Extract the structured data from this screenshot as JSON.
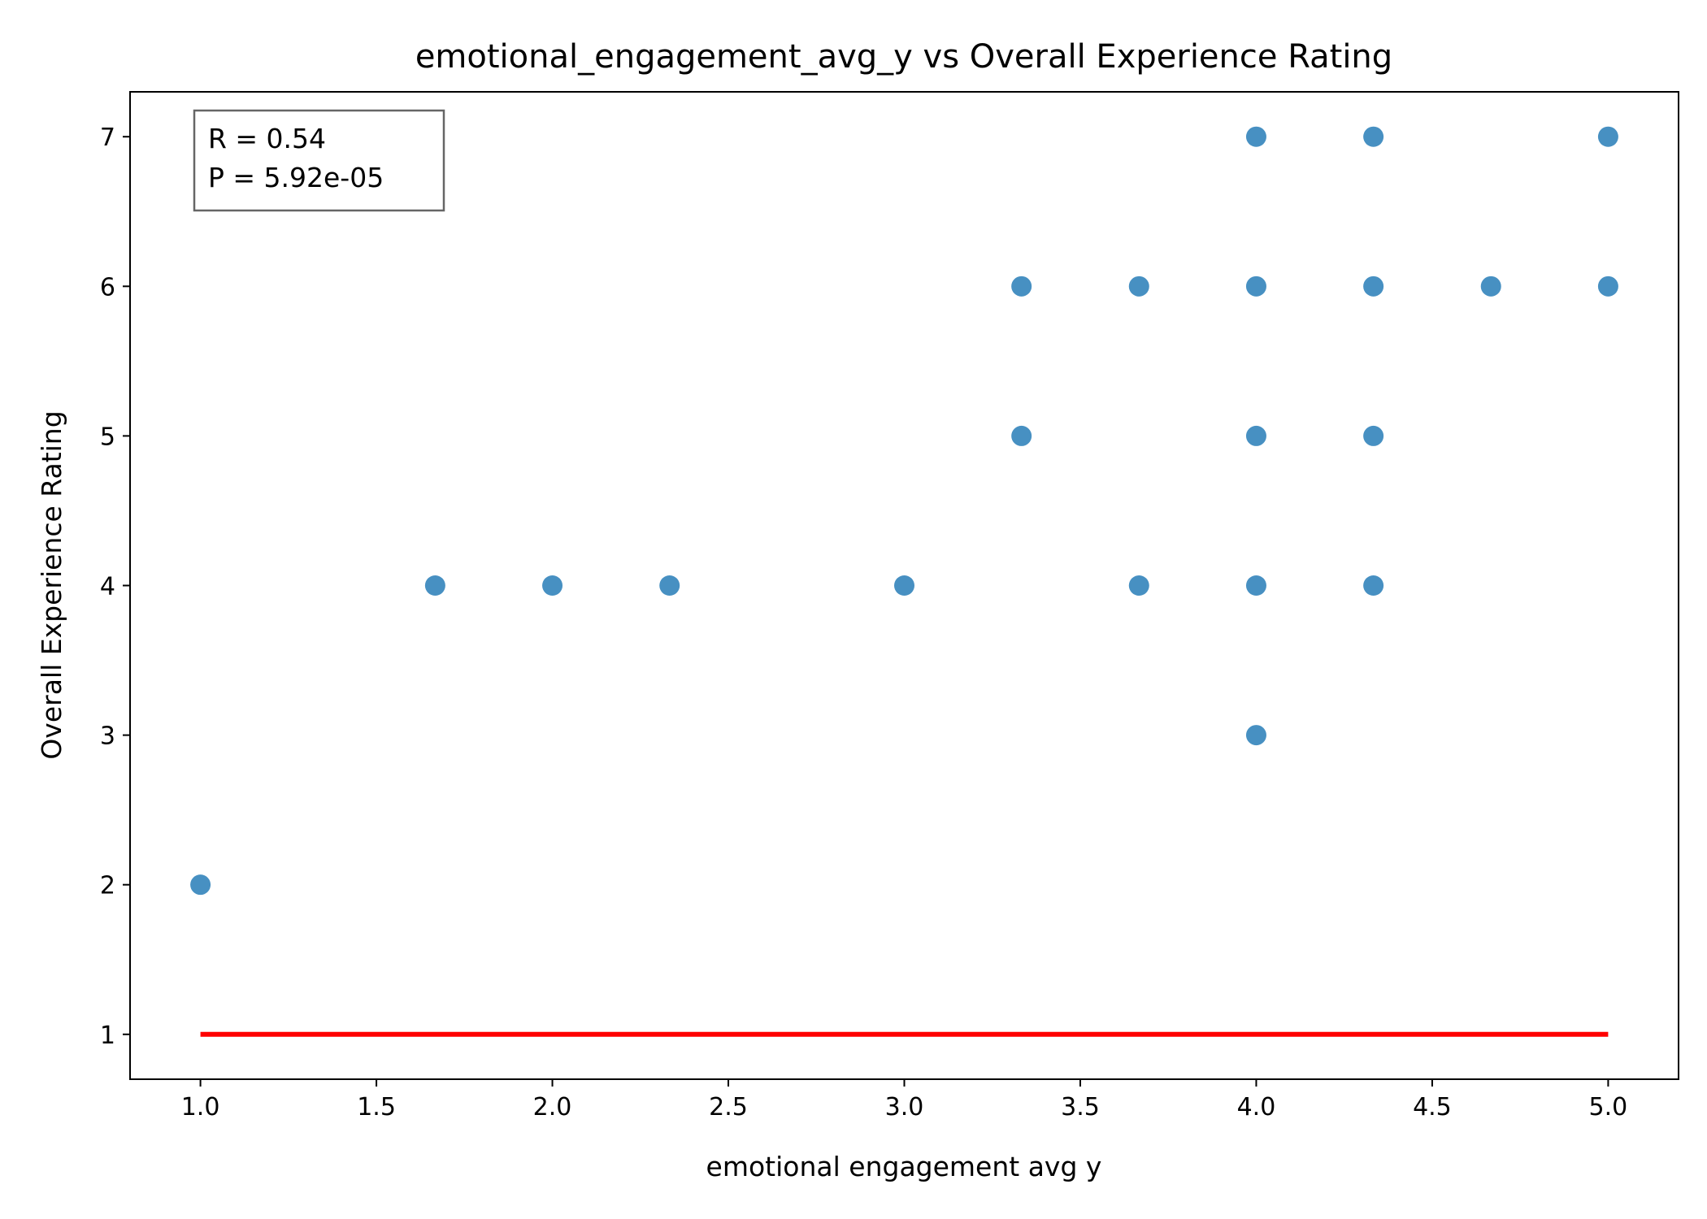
{
  "chart_data": {
    "type": "scatter",
    "title": "emotional_engagement_avg_y vs Overall Experience Rating",
    "xlabel": "emotional engagement avg y",
    "ylabel": "Overall Experience Rating",
    "xlim": [
      0.8,
      5.2
    ],
    "ylim": [
      0.7,
      7.3
    ],
    "xticks": [
      "1.0",
      "1.5",
      "2.0",
      "2.5",
      "3.0",
      "3.5",
      "4.0",
      "4.5",
      "5.0"
    ],
    "yticks": [
      "1",
      "2",
      "3",
      "4",
      "5",
      "6",
      "7"
    ],
    "grid": false,
    "point_color": "#1f77b4",
    "line_color": "#ff0000",
    "points": [
      {
        "x": 1.0,
        "y": 2
      },
      {
        "x": 1.667,
        "y": 4
      },
      {
        "x": 2.0,
        "y": 4
      },
      {
        "x": 2.333,
        "y": 4
      },
      {
        "x": 3.0,
        "y": 4
      },
      {
        "x": 3.333,
        "y": 6
      },
      {
        "x": 3.333,
        "y": 5
      },
      {
        "x": 3.667,
        "y": 6
      },
      {
        "x": 3.667,
        "y": 4
      },
      {
        "x": 4.0,
        "y": 7
      },
      {
        "x": 4.0,
        "y": 6
      },
      {
        "x": 4.0,
        "y": 5
      },
      {
        "x": 4.0,
        "y": 4
      },
      {
        "x": 4.0,
        "y": 3
      },
      {
        "x": 4.333,
        "y": 7
      },
      {
        "x": 4.333,
        "y": 6
      },
      {
        "x": 4.333,
        "y": 5
      },
      {
        "x": 4.333,
        "y": 4
      },
      {
        "x": 4.667,
        "y": 6
      },
      {
        "x": 5.0,
        "y": 7
      },
      {
        "x": 5.0,
        "y": 6
      }
    ],
    "fit_line": {
      "x": [
        1.0,
        5.0
      ],
      "y": [
        1,
        1
      ]
    },
    "annotation": {
      "line1": "R = 0.54",
      "line2": "P = 5.92e-05",
      "placement": "top-left"
    }
  }
}
